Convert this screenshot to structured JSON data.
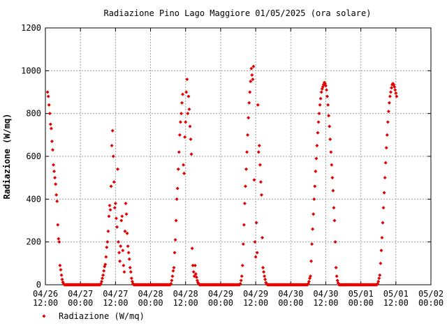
{
  "chart_data": {
    "type": "scatter",
    "title": "Radiazione Pino Lago Maggiore 01/05/2025 (ora solare)",
    "xlabel": "",
    "ylabel": "Radiazione (W/mq)",
    "ylim": [
      0,
      1200
    ],
    "yticks": [
      0,
      200,
      400,
      600,
      800,
      1000,
      1200
    ],
    "xlim": [
      "2025-04-26 12:00",
      "2025-05-02 00:00"
    ],
    "xticks": [
      {
        "t": "2025-04-26 12:00",
        "line1": "04/26",
        "line2": "12:00"
      },
      {
        "t": "2025-04-27 00:00",
        "line1": "04/27",
        "line2": "00:00"
      },
      {
        "t": "2025-04-27 12:00",
        "line1": "04/27",
        "line2": "12:00"
      },
      {
        "t": "2025-04-28 00:00",
        "line1": "04/28",
        "line2": "00:00"
      },
      {
        "t": "2025-04-28 12:00",
        "line1": "04/28",
        "line2": "12:00"
      },
      {
        "t": "2025-04-29 00:00",
        "line1": "04/29",
        "line2": "00:00"
      },
      {
        "t": "2025-04-29 12:00",
        "line1": "04/29",
        "line2": "12:00"
      },
      {
        "t": "2025-04-30 00:00",
        "line1": "04/30",
        "line2": "00:00"
      },
      {
        "t": "2025-04-30 12:00",
        "line1": "04/30",
        "line2": "12:00"
      },
      {
        "t": "2025-05-01 00:00",
        "line1": "05/01",
        "line2": "00:00"
      },
      {
        "t": "2025-05-01 12:00",
        "line1": "05/01",
        "line2": "12:00"
      },
      {
        "t": "2025-05-02 00:00",
        "line1": "05/02",
        "line2": "00:00"
      }
    ],
    "grid": true,
    "legend_position": "bottom-left",
    "series": [
      {
        "name": "Radiazione (W/mq)",
        "color": "#e00000",
        "marker": "diamond",
        "points": [
          [
            "2025-04-26 12:45",
            900
          ],
          [
            "2025-04-26 13:00",
            880
          ],
          [
            "2025-04-26 13:15",
            840
          ],
          [
            "2025-04-26 13:30",
            800
          ],
          [
            "2025-04-26 13:45",
            750
          ],
          [
            "2025-04-26 14:00",
            730
          ],
          [
            "2025-04-26 14:15",
            670
          ],
          [
            "2025-04-26 14:30",
            630
          ],
          [
            "2025-04-26 14:45",
            560
          ],
          [
            "2025-04-26 15:00",
            530
          ],
          [
            "2025-04-26 15:15",
            500
          ],
          [
            "2025-04-26 15:30",
            470
          ],
          [
            "2025-04-26 15:45",
            420
          ],
          [
            "2025-04-26 16:00",
            390
          ],
          [
            "2025-04-26 16:15",
            280
          ],
          [
            "2025-04-26 16:30",
            215
          ],
          [
            "2025-04-26 16:45",
            200
          ],
          [
            "2025-04-26 17:00",
            90
          ],
          [
            "2025-04-26 17:15",
            70
          ],
          [
            "2025-04-26 17:30",
            45
          ],
          [
            "2025-04-26 17:45",
            25
          ],
          [
            "2025-04-26 18:00",
            12
          ],
          [
            "2025-04-26 18:15",
            4
          ],
          [
            "2025-04-27 07:00",
            5
          ],
          [
            "2025-04-27 07:15",
            15
          ],
          [
            "2025-04-27 07:30",
            30
          ],
          [
            "2025-04-27 07:45",
            45
          ],
          [
            "2025-04-27 08:00",
            65
          ],
          [
            "2025-04-27 08:15",
            85
          ],
          [
            "2025-04-27 08:30",
            95
          ],
          [
            "2025-04-27 08:45",
            130
          ],
          [
            "2025-04-27 09:00",
            175
          ],
          [
            "2025-04-27 09:15",
            200
          ],
          [
            "2025-04-27 09:30",
            250
          ],
          [
            "2025-04-27 09:45",
            320
          ],
          [
            "2025-04-27 10:00",
            370
          ],
          [
            "2025-04-27 10:15",
            350
          ],
          [
            "2025-04-27 10:30",
            460
          ],
          [
            "2025-04-27 10:45",
            650
          ],
          [
            "2025-04-27 11:00",
            720
          ],
          [
            "2025-04-27 11:15",
            600
          ],
          [
            "2025-04-27 11:30",
            480
          ],
          [
            "2025-04-27 11:45",
            360
          ],
          [
            "2025-04-27 12:00",
            380
          ],
          [
            "2025-04-27 12:15",
            310
          ],
          [
            "2025-04-27 12:30",
            270
          ],
          [
            "2025-04-27 12:45",
            540
          ],
          [
            "2025-04-27 13:00",
            200
          ],
          [
            "2025-04-27 13:15",
            150
          ],
          [
            "2025-04-27 13:30",
            110
          ],
          [
            "2025-04-27 13:45",
            180
          ],
          [
            "2025-04-27 14:00",
            300
          ],
          [
            "2025-04-27 14:15",
            320
          ],
          [
            "2025-04-27 14:30",
            160
          ],
          [
            "2025-04-27 14:45",
            90
          ],
          [
            "2025-04-27 15:00",
            60
          ],
          [
            "2025-04-27 15:15",
            250
          ],
          [
            "2025-04-27 15:30",
            380
          ],
          [
            "2025-04-27 15:45",
            330
          ],
          [
            "2025-04-27 16:00",
            240
          ],
          [
            "2025-04-27 16:15",
            180
          ],
          [
            "2025-04-27 16:30",
            150
          ],
          [
            "2025-04-27 16:45",
            120
          ],
          [
            "2025-04-27 17:00",
            80
          ],
          [
            "2025-04-27 17:15",
            60
          ],
          [
            "2025-04-27 17:30",
            30
          ],
          [
            "2025-04-27 17:45",
            15
          ],
          [
            "2025-04-27 18:00",
            5
          ],
          [
            "2025-04-28 07:00",
            5
          ],
          [
            "2025-04-28 07:15",
            20
          ],
          [
            "2025-04-28 07:30",
            40
          ],
          [
            "2025-04-28 07:45",
            65
          ],
          [
            "2025-04-28 08:00",
            80
          ],
          [
            "2025-04-28 08:15",
            150
          ],
          [
            "2025-04-28 08:30",
            210
          ],
          [
            "2025-04-28 08:45",
            300
          ],
          [
            "2025-04-28 09:00",
            400
          ],
          [
            "2025-04-28 09:15",
            450
          ],
          [
            "2025-04-28 09:30",
            540
          ],
          [
            "2025-04-28 09:45",
            620
          ],
          [
            "2025-04-28 10:00",
            700
          ],
          [
            "2025-04-28 10:15",
            760
          ],
          [
            "2025-04-28 10:30",
            800
          ],
          [
            "2025-04-28 10:45",
            850
          ],
          [
            "2025-04-28 11:00",
            890
          ],
          [
            "2025-04-28 11:15",
            560
          ],
          [
            "2025-04-28 11:30",
            520
          ],
          [
            "2025-04-28 11:45",
            690
          ],
          [
            "2025-04-28 12:00",
            760
          ],
          [
            "2025-04-28 12:15",
            900
          ],
          [
            "2025-04-28 12:30",
            960
          ],
          [
            "2025-04-28 12:45",
            800
          ],
          [
            "2025-04-28 13:00",
            880
          ],
          [
            "2025-04-28 13:15",
            820
          ],
          [
            "2025-04-28 13:30",
            740
          ],
          [
            "2025-04-28 13:45",
            680
          ],
          [
            "2025-04-28 14:00",
            610
          ],
          [
            "2025-04-28 14:15",
            170
          ],
          [
            "2025-04-28 14:30",
            90
          ],
          [
            "2025-04-28 14:45",
            60
          ],
          [
            "2025-04-28 15:00",
            40
          ],
          [
            "2025-04-28 15:15",
            90
          ],
          [
            "2025-04-28 15:30",
            50
          ],
          [
            "2025-04-28 15:45",
            35
          ],
          [
            "2025-04-28 16:00",
            20
          ],
          [
            "2025-04-28 16:15",
            10
          ],
          [
            "2025-04-28 16:30",
            4
          ],
          [
            "2025-04-29 06:45",
            5
          ],
          [
            "2025-04-29 07:00",
            20
          ],
          [
            "2025-04-29 07:15",
            40
          ],
          [
            "2025-04-29 07:30",
            90
          ],
          [
            "2025-04-29 07:45",
            190
          ],
          [
            "2025-04-29 08:00",
            280
          ],
          [
            "2025-04-29 08:15",
            380
          ],
          [
            "2025-04-29 08:30",
            460
          ],
          [
            "2025-04-29 08:45",
            540
          ],
          [
            "2025-04-29 09:00",
            620
          ],
          [
            "2025-04-29 09:15",
            700
          ],
          [
            "2025-04-29 09:30",
            780
          ],
          [
            "2025-04-29 09:45",
            850
          ],
          [
            "2025-04-29 10:00",
            900
          ],
          [
            "2025-04-29 10:15",
            950
          ],
          [
            "2025-04-29 10:30",
            1010
          ],
          [
            "2025-04-29 10:45",
            980
          ],
          [
            "2025-04-29 11:00",
            960
          ],
          [
            "2025-04-29 11:15",
            1020
          ],
          [
            "2025-04-29 11:30",
            490
          ],
          [
            "2025-04-29 11:45",
            200
          ],
          [
            "2025-04-29 12:00",
            130
          ],
          [
            "2025-04-29 12:15",
            290
          ],
          [
            "2025-04-29 12:30",
            150
          ],
          [
            "2025-04-29 12:45",
            840
          ],
          [
            "2025-04-29 13:00",
            620
          ],
          [
            "2025-04-29 13:15",
            650
          ],
          [
            "2025-04-29 13:30",
            560
          ],
          [
            "2025-04-29 13:45",
            480
          ],
          [
            "2025-04-29 14:00",
            420
          ],
          [
            "2025-04-29 14:15",
            220
          ],
          [
            "2025-04-29 14:30",
            80
          ],
          [
            "2025-04-29 14:45",
            60
          ],
          [
            "2025-04-29 15:00",
            40
          ],
          [
            "2025-04-29 15:15",
            25
          ],
          [
            "2025-04-29 15:30",
            10
          ],
          [
            "2025-04-29 15:45",
            4
          ],
          [
            "2025-04-30 06:00",
            5
          ],
          [
            "2025-04-30 06:15",
            15
          ],
          [
            "2025-04-30 06:30",
            30
          ],
          [
            "2025-04-30 06:45",
            40
          ],
          [
            "2025-04-30 07:00",
            110
          ],
          [
            "2025-04-30 07:15",
            190
          ],
          [
            "2025-04-30 07:30",
            260
          ],
          [
            "2025-04-30 07:45",
            330
          ],
          [
            "2025-04-30 08:00",
            400
          ],
          [
            "2025-04-30 08:15",
            460
          ],
          [
            "2025-04-30 08:30",
            530
          ],
          [
            "2025-04-30 08:45",
            590
          ],
          [
            "2025-04-30 09:00",
            650
          ],
          [
            "2025-04-30 09:15",
            710
          ],
          [
            "2025-04-30 09:30",
            760
          ],
          [
            "2025-04-30 09:45",
            800
          ],
          [
            "2025-04-30 10:00",
            840
          ],
          [
            "2025-04-30 10:15",
            870
          ],
          [
            "2025-04-30 10:30",
            900
          ],
          [
            "2025-04-30 10:45",
            915
          ],
          [
            "2025-04-30 11:00",
            925
          ],
          [
            "2025-04-30 11:15",
            935
          ],
          [
            "2025-04-30 11:30",
            945
          ],
          [
            "2025-04-30 11:45",
            940
          ],
          [
            "2025-04-30 12:00",
            930
          ],
          [
            "2025-04-30 12:15",
            910
          ],
          [
            "2025-04-30 12:30",
            880
          ],
          [
            "2025-04-30 12:45",
            840
          ],
          [
            "2025-04-30 13:00",
            790
          ],
          [
            "2025-04-30 13:15",
            740
          ],
          [
            "2025-04-30 13:30",
            680
          ],
          [
            "2025-04-30 13:45",
            620
          ],
          [
            "2025-04-30 14:00",
            560
          ],
          [
            "2025-04-30 14:15",
            500
          ],
          [
            "2025-04-30 14:30",
            440
          ],
          [
            "2025-04-30 14:45",
            360
          ],
          [
            "2025-04-30 15:00",
            300
          ],
          [
            "2025-04-30 15:15",
            200
          ],
          [
            "2025-04-30 15:30",
            80
          ],
          [
            "2025-04-30 15:45",
            40
          ],
          [
            "2025-04-30 16:00",
            20
          ],
          [
            "2025-04-30 16:15",
            8
          ],
          [
            "2025-05-01 05:45",
            5
          ],
          [
            "2025-05-01 06:00",
            15
          ],
          [
            "2025-05-01 06:15",
            30
          ],
          [
            "2025-05-01 06:30",
            45
          ],
          [
            "2025-05-01 06:45",
            100
          ],
          [
            "2025-05-01 07:00",
            160
          ],
          [
            "2025-05-01 07:15",
            220
          ],
          [
            "2025-05-01 07:30",
            290
          ],
          [
            "2025-05-01 07:45",
            360
          ],
          [
            "2025-05-01 08:00",
            430
          ],
          [
            "2025-05-01 08:15",
            500
          ],
          [
            "2025-05-01 08:30",
            570
          ],
          [
            "2025-05-01 08:45",
            640
          ],
          [
            "2025-05-01 09:00",
            700
          ],
          [
            "2025-05-01 09:15",
            760
          ],
          [
            "2025-05-01 09:30",
            810
          ],
          [
            "2025-05-01 09:45",
            850
          ],
          [
            "2025-05-01 10:00",
            880
          ],
          [
            "2025-05-01 10:15",
            900
          ],
          [
            "2025-05-01 10:30",
            920
          ],
          [
            "2025-05-01 10:45",
            935
          ],
          [
            "2025-05-01 11:00",
            940
          ],
          [
            "2025-05-01 11:15",
            935
          ],
          [
            "2025-05-01 11:30",
            925
          ],
          [
            "2025-05-01 11:45",
            910
          ],
          [
            "2025-05-01 12:00",
            895
          ],
          [
            "2025-05-01 12:15",
            880
          ]
        ]
      }
    ],
    "night_zero": [
      [
        "2025-04-26 18:30",
        "2025-04-27 06:45"
      ],
      [
        "2025-04-27 18:15",
        "2025-04-28 06:45"
      ],
      [
        "2025-04-28 16:45",
        "2025-04-29 06:30"
      ],
      [
        "2025-04-29 16:00",
        "2025-04-30 05:45"
      ],
      [
        "2025-04-30 16:30",
        "2025-05-01 05:30"
      ]
    ]
  }
}
